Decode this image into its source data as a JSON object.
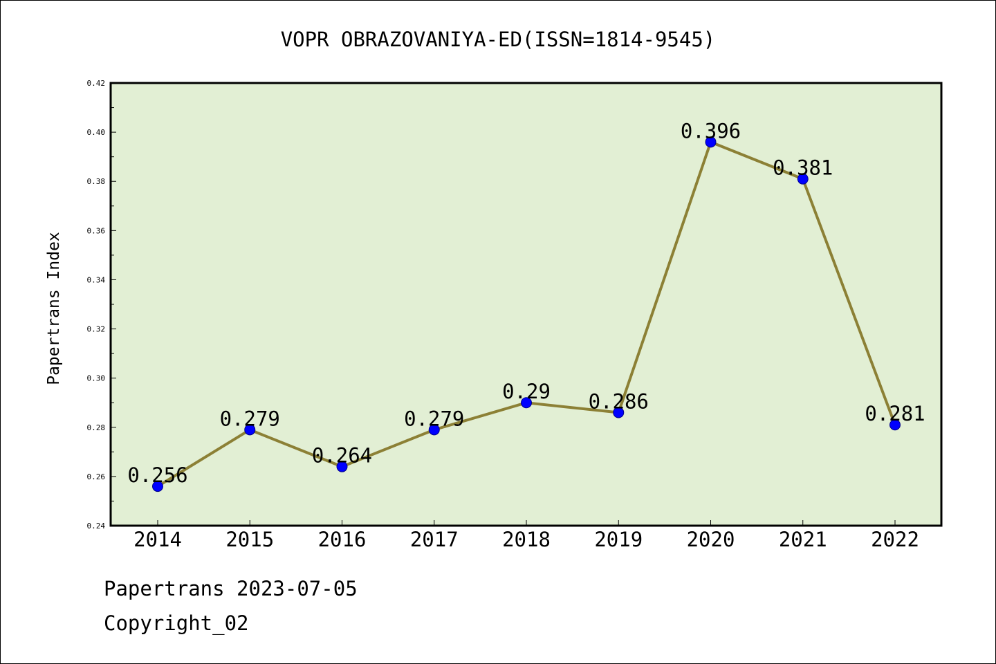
{
  "chart_data": {
    "type": "line",
    "title": "VOPR OBRAZOVANIYA-ED(ISSN=1814-9545)",
    "xlabel": "",
    "ylabel": "Papertrans Index",
    "categories": [
      "2014",
      "2015",
      "2016",
      "2017",
      "2018",
      "2019",
      "2020",
      "2021",
      "2022"
    ],
    "values": [
      0.256,
      0.279,
      0.264,
      0.279,
      0.29,
      0.286,
      0.396,
      0.381,
      0.281
    ],
    "data_labels": [
      "0.256",
      "0.279",
      "0.264",
      "0.279",
      "0.29",
      "0.286",
      "0.396",
      "0.381",
      "0.281"
    ],
    "ylim": [
      0.24,
      0.42
    ],
    "yticks": [
      "0.24",
      "0.26",
      "0.28",
      "0.30",
      "0.32",
      "0.34",
      "0.36",
      "0.38",
      "0.40",
      "0.42"
    ],
    "grid": false,
    "colors": {
      "line": "#8c8035",
      "marker": "#0000ff",
      "plot_background": "#e2efd4"
    }
  },
  "footer": {
    "line1": "Papertrans 2023-07-05",
    "line2": "Copyright_02"
  }
}
